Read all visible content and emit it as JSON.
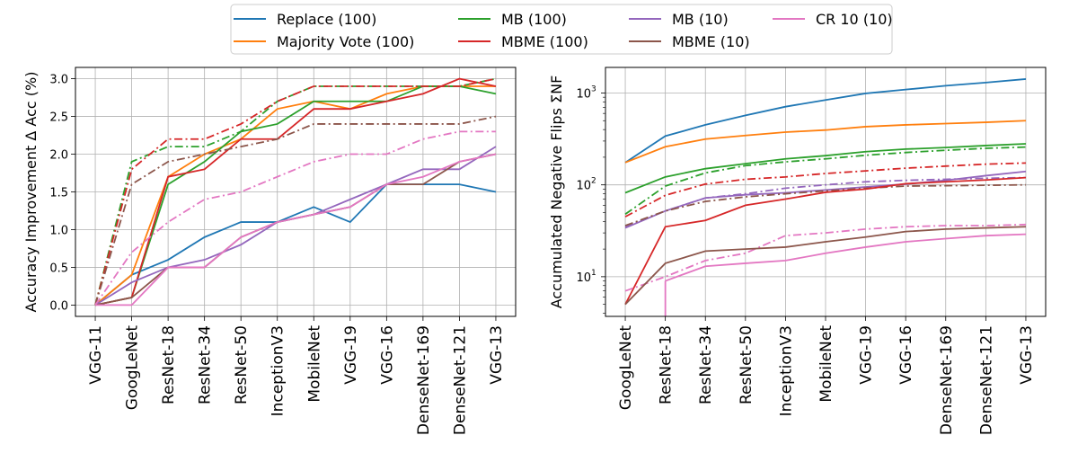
{
  "chart_data": {
    "legend": {
      "placement": "top-center",
      "columns": 4,
      "entries": [
        {
          "label": "Replace (100)",
          "color": "#1f77b4"
        },
        {
          "label": "Majority Vote (100)",
          "color": "#ff7f0e"
        },
        {
          "label": "MB (100)",
          "color": "#2ca02c"
        },
        {
          "label": "MBME (100)",
          "color": "#d62728"
        },
        {
          "label": "MB (10)",
          "color": "#9467bd"
        },
        {
          "label": "MBME (10)",
          "color": "#8c564b"
        },
        {
          "label": "CR 10 (10)",
          "color": "#e377c2"
        }
      ]
    },
    "charts": [
      {
        "type": "line",
        "ylabel": "Accuracy Improvement Δ Acc (%)",
        "yscale": "linear",
        "ylim": [
          -0.15,
          3.15
        ],
        "yticks": [
          0.0,
          0.5,
          1.0,
          1.5,
          2.0,
          2.5,
          3.0
        ],
        "ytick_labels": [
          "0.0",
          "0.5",
          "1.0",
          "1.5",
          "2.0",
          "2.5",
          "3.0"
        ],
        "grid": true,
        "categories": [
          "VGG-11",
          "GoogLeNet",
          "ResNet-18",
          "ResNet-34",
          "ResNet-50",
          "InceptionV3",
          "MobileNet",
          "VGG-19",
          "VGG-16",
          "DenseNet-169",
          "DenseNet-121",
          "VGG-13"
        ],
        "series": [
          {
            "name": "Replace (100)",
            "color": "#1f77b4",
            "style": "solid",
            "values": [
              0,
              0.4,
              0.6,
              0.9,
              1.1,
              1.1,
              1.3,
              1.1,
              1.6,
              1.6,
              1.6,
              1.5
            ]
          },
          {
            "name": "Majority Vote (100)",
            "color": "#ff7f0e",
            "style": "solid",
            "values": [
              0,
              0.4,
              1.7,
              2.0,
              2.2,
              2.6,
              2.7,
              2.6,
              2.8,
              2.9,
              2.9,
              2.9
            ]
          },
          {
            "name": "MB (100)",
            "color": "#2ca02c",
            "style": "solid",
            "values": [
              0,
              0.1,
              1.6,
              1.9,
              2.3,
              2.4,
              2.7,
              2.7,
              2.7,
              2.9,
              2.9,
              2.8
            ]
          },
          {
            "name": "MBME (100)",
            "color": "#d62728",
            "style": "solid",
            "values": [
              0,
              0.1,
              1.7,
              1.8,
              2.2,
              2.2,
              2.6,
              2.6,
              2.7,
              2.8,
              3.0,
              2.9
            ]
          },
          {
            "name": "MB (10)",
            "color": "#9467bd",
            "style": "solid",
            "values": [
              0,
              0.3,
              0.5,
              0.6,
              0.8,
              1.1,
              1.2,
              1.4,
              1.6,
              1.8,
              1.8,
              2.1
            ]
          },
          {
            "name": "MBME (10)",
            "color": "#8c564b",
            "style": "solid",
            "values": [
              0,
              0.1,
              0.5,
              0.5,
              0.9,
              1.1,
              1.2,
              1.3,
              1.6,
              1.6,
              1.9,
              2.0
            ]
          },
          {
            "name": "CR 10 (10)",
            "color": "#e377c2",
            "style": "solid",
            "values": [
              0,
              0,
              0.5,
              0.5,
              0.9,
              1.1,
              1.2,
              1.3,
              1.6,
              1.7,
              1.9,
              2.0
            ]
          },
          {
            "name": "MB (100) dash-dot",
            "color": "#2ca02c",
            "style": "dashdot",
            "values": [
              0,
              1.9,
              2.1,
              2.1,
              2.3,
              2.7,
              2.9,
              2.9,
              2.9,
              2.9,
              2.9,
              3.0
            ]
          },
          {
            "name": "MBME (100) dash-dot",
            "color": "#d62728",
            "style": "dashdot",
            "values": [
              0,
              1.8,
              2.2,
              2.2,
              2.4,
              2.7,
              2.9,
              2.9,
              2.9,
              2.9,
              2.9,
              3.0
            ]
          },
          {
            "name": "MBME (10) dash-dot",
            "color": "#8c564b",
            "style": "dashdot",
            "values": [
              0,
              1.6,
              1.9,
              2.0,
              2.1,
              2.2,
              2.4,
              2.4,
              2.4,
              2.4,
              2.4,
              2.5
            ]
          },
          {
            "name": "CR 10 (10) dash-dot",
            "color": "#e377c2",
            "style": "dashdot",
            "values": [
              0,
              0.7,
              1.1,
              1.4,
              1.5,
              1.7,
              1.9,
              2.0,
              2.0,
              2.2,
              2.3,
              2.3
            ]
          }
        ]
      },
      {
        "type": "line",
        "ylabel": "Accumulated Negative Flips ΣNF",
        "yscale": "log",
        "ylim": [
          3.7,
          1900
        ],
        "yticks": [
          10,
          100,
          1000
        ],
        "ytick_labels": [
          {
            "base": "10",
            "exp": "1"
          },
          {
            "base": "10",
            "exp": "2"
          },
          {
            "base": "10",
            "exp": "3"
          }
        ],
        "grid": true,
        "categories": [
          "GoogLeNet",
          "ResNet-18",
          "ResNet-34",
          "ResNet-50",
          "InceptionV3",
          "MobileNet",
          "VGG-19",
          "VGG-16",
          "DenseNet-169",
          "DenseNet-121",
          "VGG-13"
        ],
        "series": [
          {
            "name": "Replace (100)",
            "color": "#1f77b4",
            "style": "solid",
            "values": [
              175,
              340,
              450,
              570,
              710,
              840,
              990,
              1090,
              1200,
              1300,
              1420
            ]
          },
          {
            "name": "Majority Vote (100)",
            "color": "#ff7f0e",
            "style": "solid",
            "values": [
              175,
              260,
              315,
              345,
              375,
              395,
              430,
              450,
              465,
              480,
              500
            ]
          },
          {
            "name": "MB (100)",
            "color": "#2ca02c",
            "style": "solid",
            "values": [
              82,
              122,
              150,
              170,
              192,
              208,
              230,
              245,
              255,
              268,
              280
            ]
          },
          {
            "name": "MB (100) dash-dot",
            "color": "#2ca02c",
            "style": "dashdot",
            "values": [
              48,
              97,
              135,
              162,
              178,
              192,
              210,
              225,
              238,
              250,
              258
            ]
          },
          {
            "name": "MBME (100) dash-dot",
            "color": "#d62728",
            "style": "dashdot",
            "values": [
              45,
              77,
              102,
              115,
              122,
              133,
              142,
              152,
              160,
              168,
              173
            ]
          },
          {
            "name": "MB (10)",
            "color": "#9467bd",
            "style": "solid",
            "values": [
              34,
              52,
              72,
              78,
              82,
              88,
              95,
              102,
              112,
              126,
              140
            ]
          },
          {
            "name": "MB (10) dash-dot",
            "color": "#9467bd",
            "style": "dashdot",
            "values": [
              35,
              52,
              72,
              80,
              92,
              100,
              108,
              112,
              115,
              118,
              120
            ]
          },
          {
            "name": "MBME (10) dash-dot",
            "color": "#8c564b",
            "style": "dashdot",
            "values": [
              36,
              52,
              66,
              74,
              80,
              86,
              92,
              97,
              98,
              99,
              100
            ]
          },
          {
            "name": "MBME (100)",
            "color": "#d62728",
            "style": "solid",
            "values": [
              5,
              35,
              41,
              60,
              70,
              83,
              90,
              103,
              108,
              113,
              120
            ]
          },
          {
            "name": "CR 10 (10) dash-dot",
            "color": "#e377c2",
            "style": "dashdot",
            "values": [
              7,
              10,
              15,
              18,
              28,
              30,
              33,
              35,
              36,
              36,
              37
            ]
          },
          {
            "name": "MBME (10)",
            "color": "#8c564b",
            "style": "solid",
            "values": [
              5,
              14,
              19,
              20,
              21,
              24,
              27,
              31,
              33,
              34,
              35
            ]
          },
          {
            "name": "CR 10 (10)",
            "color": "#e377c2",
            "style": "solid",
            "values": [
              null,
              9,
              13,
              14,
              15,
              18,
              21,
              24,
              26,
              28,
              29
            ]
          }
        ]
      }
    ]
  }
}
